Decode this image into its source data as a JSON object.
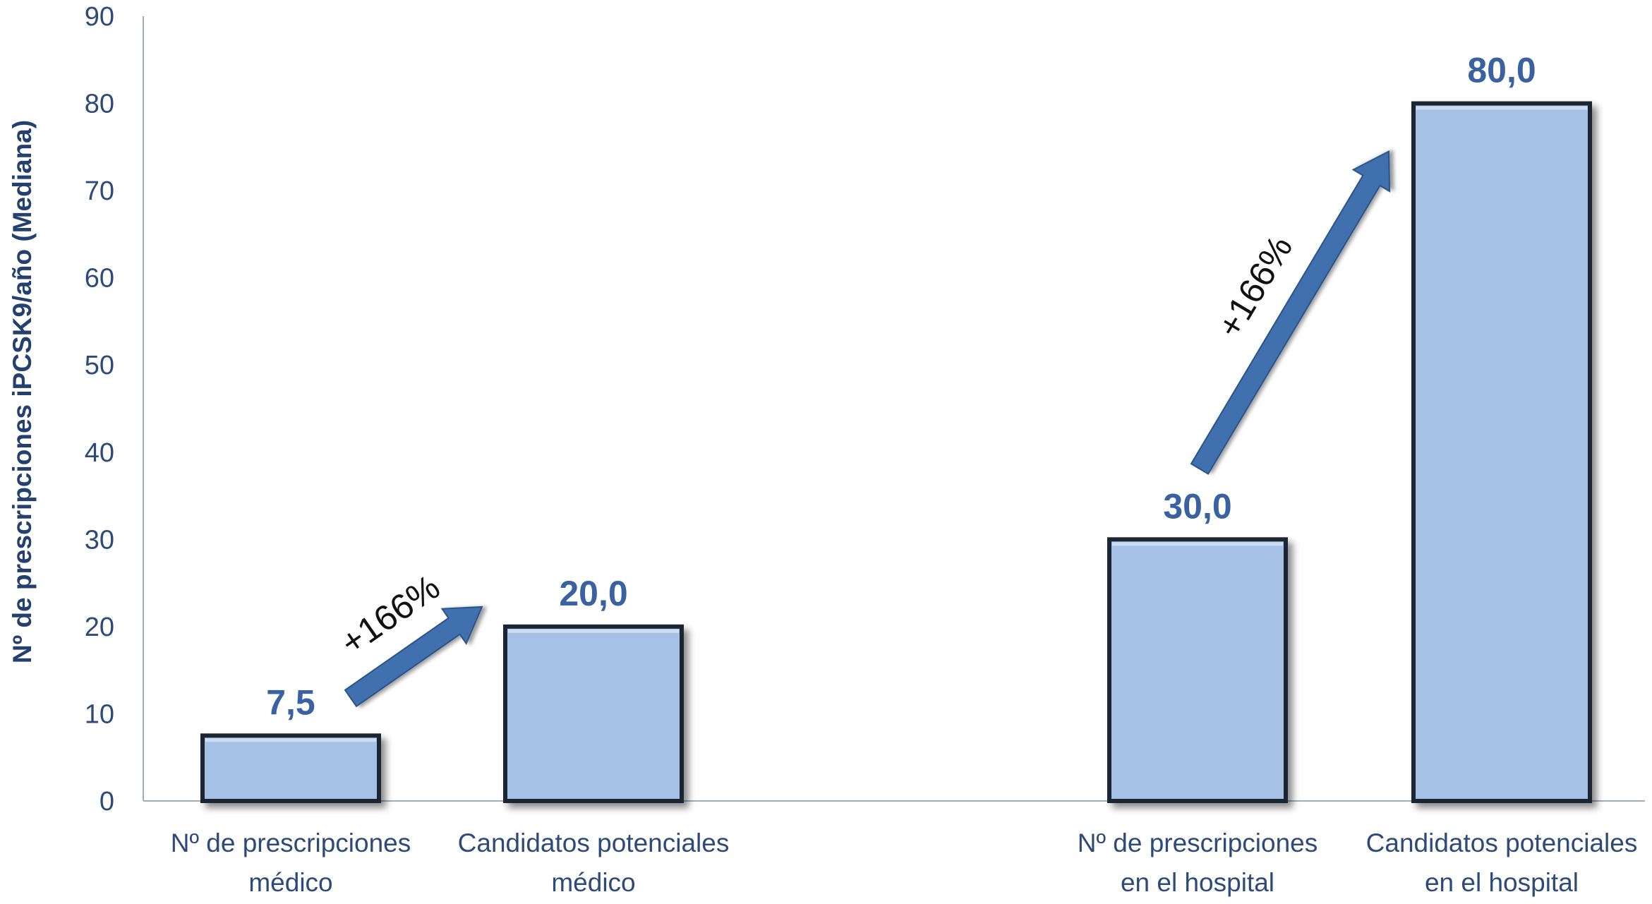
{
  "chart_data": {
    "type": "bar",
    "ylabel": "Nº de prescripciones iPCSK9/año (Mediana)",
    "ylim": [
      0,
      90
    ],
    "yticks": [
      0,
      10,
      20,
      30,
      40,
      50,
      60,
      70,
      80,
      90
    ],
    "grid": false,
    "categories": [
      [
        "Nº de prescripciones",
        "médico"
      ],
      [
        "Candidatos potenciales",
        "médico"
      ],
      [
        "Nº de prescripciones",
        "en el hospital"
      ],
      [
        "Candidatos potenciales",
        "en el hospital"
      ]
    ],
    "values": [
      7.5,
      20.0,
      30.0,
      80.0
    ],
    "data_labels": [
      "7,5",
      "20,0",
      "30,0",
      "80,0"
    ],
    "annotations": [
      {
        "text": "+166%",
        "from_category": 0,
        "to_category": 1
      },
      {
        "text": "+166%",
        "from_category": 2,
        "to_category": 3
      }
    ],
    "colors": {
      "bar_fill": "#a5c2e6",
      "bar_stroke": "#1e2733",
      "data_label": "#3b62a0",
      "arrow": "#3f6fae",
      "axis_text": "#2e4a78",
      "axis_line": "#a6adb6"
    }
  }
}
